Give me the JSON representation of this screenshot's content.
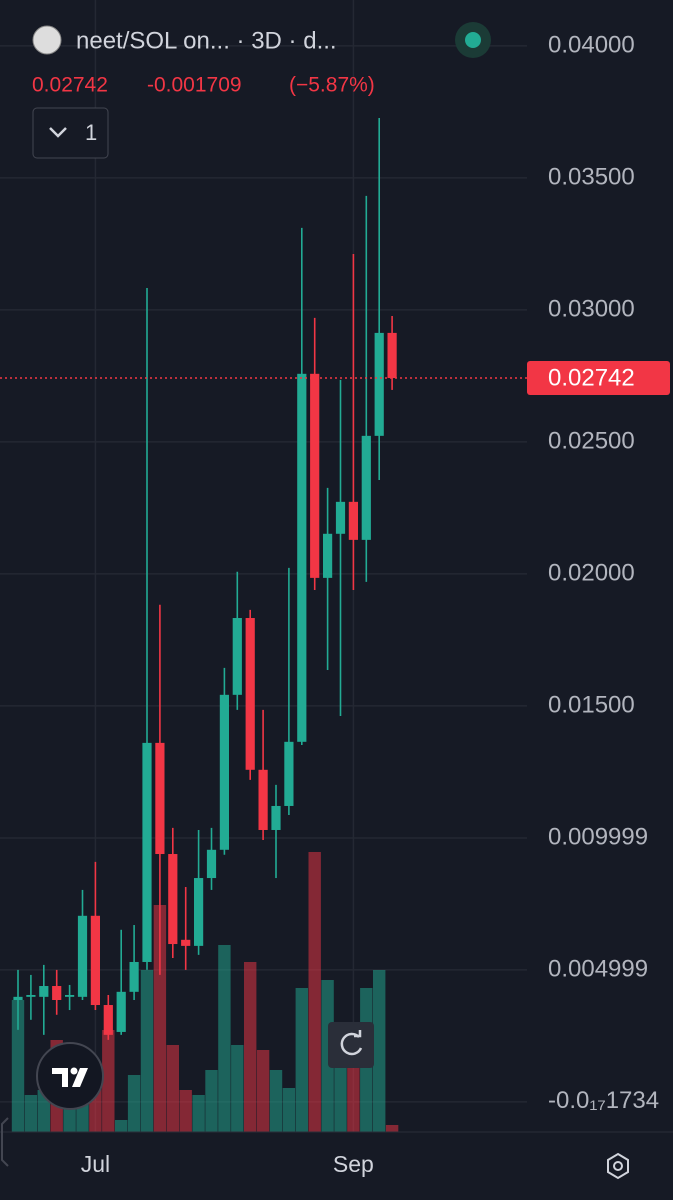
{
  "header": {
    "title": "neet/SOL on... · 3D · d...",
    "last": "0.02742",
    "change": "-0.001709",
    "change_pct": "(−5.87%)",
    "interval_button": "1"
  },
  "chart_data": {
    "type": "candlestick",
    "grid": true,
    "up_color": "#22ab94",
    "down_color": "#f23645",
    "categories": [
      null,
      null,
      null,
      null,
      null,
      null,
      "Jul",
      null,
      null,
      null,
      null,
      null,
      null,
      null,
      null,
      null,
      null,
      null,
      null,
      null,
      null,
      null,
      null,
      null,
      null,
      null,
      "Sep",
      null,
      null,
      null
    ],
    "open": [
      0.00386,
      0.00398,
      0.00398,
      0.00439,
      0.00398,
      0.00398,
      0.00705,
      0.00367,
      0.00265,
      0.00417,
      0.0053,
      0.0136,
      0.00939,
      0.00614,
      0.00591,
      0.00848,
      0.00955,
      0.01542,
      0.01833,
      0.01258,
      0.0103,
      0.01121,
      0.01364,
      0.02758,
      0.01985,
      0.02152,
      0.02273,
      0.02129,
      0.02523,
      0.02913
    ],
    "high": [
      0.005,
      0.00481,
      0.00519,
      0.005,
      0.00443,
      0.00803,
      0.00909,
      0.00405,
      0.00652,
      0.0067,
      0.03083,
      0.01883,
      0.01038,
      0.00814,
      0.0103,
      0.01038,
      0.01644,
      0.02008,
      0.01864,
      0.01485,
      0.01201,
      0.02023,
      0.03311,
      0.0297,
      0.02326,
      0.02735,
      0.03212,
      0.03432,
      0.03727,
      0.02977
    ],
    "low": [
      0.00273,
      0.00311,
      0.00254,
      0.0033,
      0.00348,
      0.00386,
      0.00348,
      0.00235,
      0.00254,
      0.00386,
      0.005,
      0.00481,
      0.00545,
      0.005,
      0.00557,
      0.00803,
      0.00936,
      0.01485,
      0.0122,
      0.00992,
      0.00848,
      0.01087,
      0.01352,
      0.01939,
      0.01636,
      0.01462,
      0.01939,
      0.0197,
      0.02356,
      0.02697
    ],
    "close": [
      0.00398,
      0.00405,
      0.00439,
      0.00386,
      0.00405,
      0.00705,
      0.00367,
      0.00254,
      0.00417,
      0.0053,
      0.0136,
      0.00939,
      0.00598,
      0.00591,
      0.00848,
      0.00955,
      0.01542,
      0.01833,
      0.01258,
      0.0103,
      0.01121,
      0.01364,
      0.02758,
      0.01985,
      0.02152,
      0.02273,
      0.02129,
      0.02523,
      0.02913,
      0.02742
    ],
    "volume": [
      132,
      37,
      42,
      92,
      42,
      37,
      67,
      102,
      12,
      57,
      162,
      227,
      87,
      42,
      37,
      62,
      187,
      87,
      170,
      82,
      62,
      44,
      144,
      280,
      152,
      87,
      92,
      144,
      162,
      7
    ],
    "ylim": [
      -0.00114,
      0.04174
    ],
    "yticks": [
      {
        "value": 0.04,
        "label": "0.04000"
      },
      {
        "value": 0.035,
        "label": "0.03500"
      },
      {
        "value": 0.03,
        "label": "0.03000"
      },
      {
        "value": 0.025,
        "label": "0.02500"
      },
      {
        "value": 0.02,
        "label": "0.02000"
      },
      {
        "value": 0.015,
        "label": "0.01500"
      },
      0.009999,
      0.004999,
      {
        "value": -1.734e-18,
        "label": "-0.0₁₇1734"
      }
    ]
  }
}
